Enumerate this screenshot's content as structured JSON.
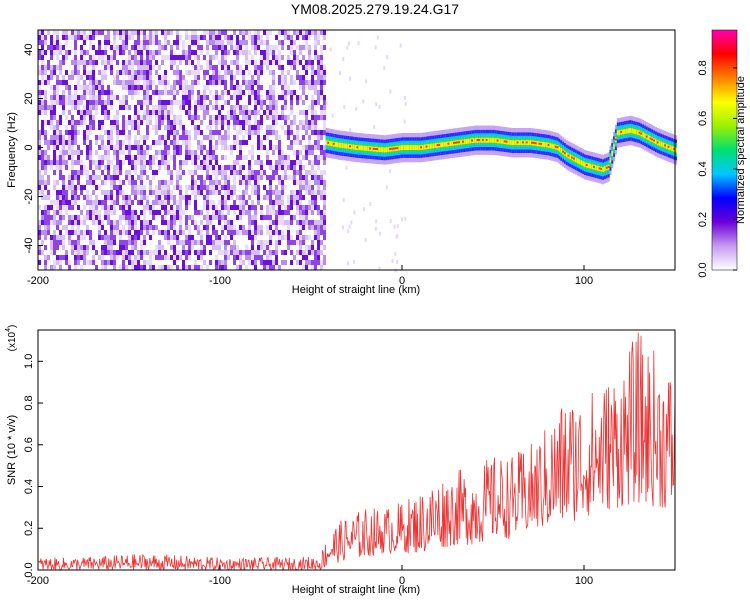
{
  "figure_title": "YM08.2025.279.19.24.G17",
  "chart_data": [
    {
      "type": "heatmap",
      "title": "",
      "xlabel": "Height of straight line (km)",
      "ylabel": "Frequency (Hz)",
      "xlim": [
        -200,
        150
      ],
      "ylim": [
        -50,
        48
      ],
      "x_ticks": [
        -200,
        -100,
        0,
        100
      ],
      "y_ticks": [
        -40,
        -20,
        0,
        20,
        40
      ],
      "colorbar": {
        "label": "Normalized spectral amplitude",
        "range": [
          0,
          0.95
        ],
        "ticks": [
          0.0,
          0.2,
          0.4,
          0.6,
          0.8
        ],
        "colormap": [
          "#ffffff",
          "#c69bf0",
          "#6a00d8",
          "#0000ff",
          "#00c8ff",
          "#00e070",
          "#9cf000",
          "#ffff00",
          "#ff8000",
          "#ff0000",
          "#ff00b0"
        ]
      },
      "noise_region": {
        "x_range": [
          -200,
          -42
        ],
        "frequency_range": [
          -50,
          48
        ]
      },
      "ridge_trace": {
        "x": [
          -42,
          -35,
          -25,
          -10,
          0,
          10,
          20,
          30,
          40,
          50,
          60,
          70,
          80,
          85,
          90,
          95,
          100,
          105,
          110,
          113,
          118,
          125,
          130,
          135,
          140,
          150
        ],
        "y": [
          2,
          1,
          0,
          -1,
          0,
          0,
          1,
          2,
          3,
          3,
          2,
          2,
          1,
          0,
          -3,
          -5,
          -7,
          -8,
          -9,
          -8,
          6,
          7,
          6,
          4,
          2,
          -1
        ]
      }
    },
    {
      "type": "line",
      "title": "",
      "xlabel": "Height of straight line (km)",
      "ylabel": "SNR (10 * v/v)",
      "y_scale_label": "(x10",
      "y_scale_exponent": "4",
      "xlim": [
        -200,
        150
      ],
      "ylim": [
        0,
        1.15
      ],
      "x_ticks": [
        -200,
        -100,
        0,
        100
      ],
      "y_ticks": [
        0.0,
        0.2,
        0.4,
        0.6,
        0.8,
        1.0
      ],
      "series": [
        {
          "color": "#ee3333",
          "x": [
            -200,
            -180,
            -160,
            -140,
            -120,
            -100,
            -80,
            -60,
            -45,
            -40,
            -30,
            -20,
            -10,
            0,
            10,
            20,
            30,
            40,
            50,
            60,
            70,
            80,
            90,
            100,
            110,
            120,
            130,
            140,
            150
          ],
          "envelope_low": [
            0.0,
            0.0,
            0.0,
            0.0,
            0.0,
            0.0,
            0.0,
            0.0,
            0.0,
            0.02,
            0.05,
            0.06,
            0.08,
            0.08,
            0.08,
            0.1,
            0.12,
            0.12,
            0.15,
            0.15,
            0.18,
            0.2,
            0.22,
            0.25,
            0.28,
            0.3,
            0.32,
            0.3,
            0.28
          ],
          "envelope_high": [
            0.06,
            0.06,
            0.07,
            0.08,
            0.07,
            0.06,
            0.06,
            0.06,
            0.07,
            0.2,
            0.26,
            0.3,
            0.3,
            0.33,
            0.38,
            0.45,
            0.48,
            0.5,
            0.55,
            0.55,
            0.6,
            0.7,
            0.85,
            0.85,
            0.9,
            1.0,
            1.15,
            1.05,
            0.95
          ]
        }
      ]
    }
  ]
}
